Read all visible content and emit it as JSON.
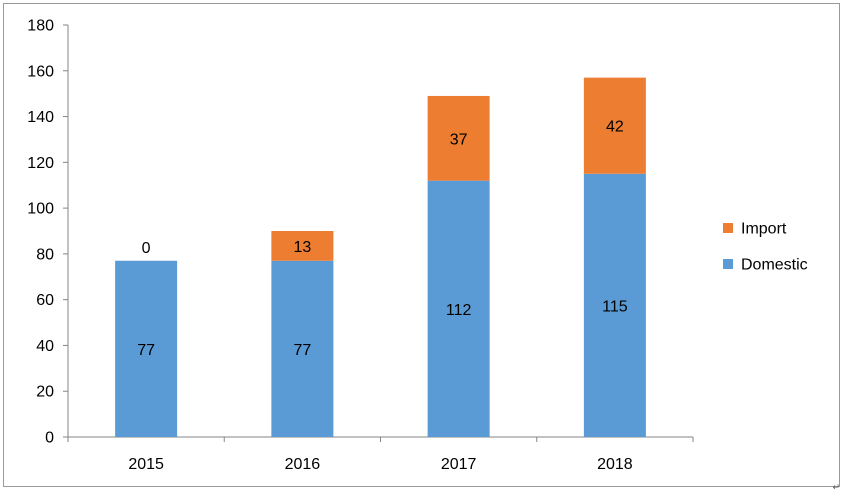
{
  "chart_data": {
    "type": "bar",
    "stacked": true,
    "title": "",
    "xlabel": "",
    "ylabel": "",
    "categories": [
      "2015",
      "2016",
      "2017",
      "2018"
    ],
    "series": [
      {
        "name": "Domestic",
        "values": [
          77,
          77,
          112,
          115
        ],
        "color": "#5b9bd5"
      },
      {
        "name": "Import",
        "values": [
          0,
          13,
          37,
          42
        ],
        "color": "#ed7d31"
      }
    ],
    "ylim": [
      0,
      180
    ],
    "yticks": [
      "0",
      "20",
      "40",
      "60",
      "80",
      "100",
      "120",
      "140",
      "160",
      "180"
    ],
    "grid": false,
    "legend": {
      "position": "right",
      "order": [
        "Import",
        "Domestic"
      ]
    }
  },
  "corner_mark": "↵"
}
